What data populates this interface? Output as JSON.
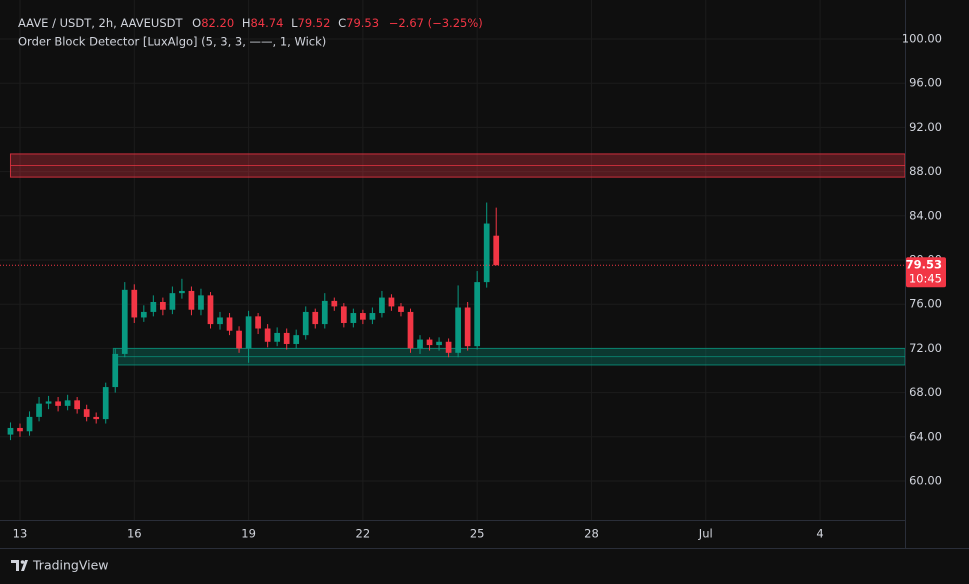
{
  "chart_data": {
    "type": "candlestick",
    "legend": {
      "symbol": "AAVE / USDT, 2h, AAVEUSDT",
      "o_label": "O",
      "open": "82.20",
      "h_label": "H",
      "high": "84.74",
      "l_label": "L",
      "low": "79.52",
      "c_label": "C",
      "close": "79.53",
      "change": "−2.67 (−3.25%)"
    },
    "indicator": "Order Block Detector [LuxAlgo] (5, 3, 3, ——, 1, Wick)",
    "up_color": "#089981",
    "down_color": "#f23645",
    "xlim": [
      -0.525,
      23.23
    ],
    "xticks": [
      {
        "value": 0,
        "label": "13"
      },
      {
        "value": 3,
        "label": "16"
      },
      {
        "value": 6,
        "label": "19"
      },
      {
        "value": 9,
        "label": "22"
      },
      {
        "value": 12,
        "label": "25"
      },
      {
        "value": 15,
        "label": "28"
      },
      {
        "value": 18,
        "label": "Jul"
      },
      {
        "value": 21,
        "label": "4"
      }
    ],
    "ylim": [
      56.47,
      103.53
    ],
    "yticks": [
      {
        "value": 60,
        "label": "60.00"
      },
      {
        "value": 64,
        "label": "64.00"
      },
      {
        "value": 68,
        "label": "68.00"
      },
      {
        "value": 72,
        "label": "72.00"
      },
      {
        "value": 76,
        "label": "76.00"
      },
      {
        "value": 80,
        "label": "80.00"
      },
      {
        "value": 84,
        "label": "84.00"
      },
      {
        "value": 88,
        "label": "88.00"
      },
      {
        "value": 92,
        "label": "92.00"
      },
      {
        "value": 96,
        "label": "96.00"
      },
      {
        "value": 100,
        "label": "100.00"
      }
    ],
    "grid": true,
    "x": [
      -0.25,
      0,
      0.25,
      0.5,
      0.75,
      1,
      1.25,
      1.5,
      1.75,
      2,
      2.25,
      2.5,
      2.75,
      3,
      3.25,
      3.5,
      3.75,
      4,
      4.25,
      4.5,
      4.75,
      5,
      5.25,
      5.5,
      5.75,
      6,
      6.25,
      6.5,
      6.75,
      7,
      7.25,
      7.5,
      7.75,
      8,
      8.25,
      8.5,
      8.75,
      9,
      9.25,
      9.5,
      9.75,
      10,
      10.25,
      10.5,
      10.75,
      11,
      11.25,
      11.5,
      11.75,
      12,
      12.25,
      12.5
    ],
    "open": [
      64.2,
      64.8,
      64.5,
      65.8,
      67,
      67.2,
      66.8,
      67.3,
      66.5,
      65.8,
      65.6,
      68.5,
      71.5,
      77.3,
      74.8,
      75.3,
      76.2,
      75.5,
      77,
      77.2,
      75.5,
      76.8,
      74.2,
      74.8,
      73.6,
      72,
      74.9,
      73.8,
      72.6,
      73.4,
      72.4,
      73.2,
      75.3,
      74.2,
      76.3,
      75.8,
      74.3,
      75.2,
      74.6,
      75.2,
      76.6,
      75.8,
      75.3,
      72,
      72.8,
      72.3,
      72.6,
      71.6,
      75.7,
      72.2,
      78,
      82.2
    ],
    "high": [
      65.3,
      65.2,
      66.3,
      67.6,
      67.7,
      67.6,
      67.8,
      67.6,
      66.9,
      66.2,
      68.9,
      72,
      78,
      77.8,
      75.9,
      76.8,
      76.6,
      77.6,
      78.3,
      77.6,
      77.4,
      77.1,
      75.3,
      75.2,
      74,
      75.4,
      75.2,
      74.2,
      73.9,
      73.8,
      73.7,
      75.8,
      75.6,
      77,
      76.6,
      76.1,
      75.6,
      75.5,
      75.7,
      77.2,
      76.9,
      76.1,
      75.6,
      73.2,
      73,
      73,
      72.9,
      77.7,
      76.2,
      79,
      85.2,
      84.74
    ],
    "low": [
      63.7,
      64,
      64.1,
      65.4,
      66.5,
      66.3,
      66.4,
      66.1,
      65.4,
      65.2,
      65.2,
      68,
      71.2,
      74.3,
      74.4,
      74.9,
      75,
      75.1,
      76.5,
      75,
      75,
      73.8,
      73.7,
      73.2,
      71.6,
      70.7,
      73.3,
      72.1,
      72.2,
      71.9,
      72,
      72.8,
      73.8,
      73.8,
      75.4,
      73.9,
      73.9,
      74.2,
      74.2,
      74.8,
      75.4,
      74.9,
      71.6,
      71.5,
      71.8,
      71.8,
      71.2,
      71.2,
      71.8,
      71.9,
      77.5,
      79.52
    ],
    "close": [
      64.8,
      64.5,
      65.8,
      67,
      67.2,
      66.8,
      67.3,
      66.5,
      65.8,
      65.6,
      68.5,
      71.5,
      77.3,
      74.8,
      75.3,
      76.2,
      75.5,
      77,
      77.2,
      75.5,
      76.8,
      74.2,
      74.8,
      73.6,
      72,
      74.9,
      73.8,
      72.6,
      73.4,
      72.4,
      73.2,
      75.3,
      74.2,
      76.3,
      75.8,
      74.3,
      75.2,
      74.6,
      75.2,
      76.6,
      75.8,
      75.3,
      72,
      72.8,
      72.3,
      72.6,
      71.6,
      75.7,
      72.2,
      78,
      83.3,
      79.53
    ],
    "order_blocks": [
      {
        "top": 89.6,
        "bottom": 87.5,
        "start": -0.25,
        "color": "#f23645"
      },
      {
        "top": 72,
        "bottom": 70.5,
        "start": 2.45,
        "color": "#089981"
      }
    ],
    "last_price": {
      "value": 79.53,
      "label": "79.53"
    },
    "countdown": "10:45",
    "brand": "TradingView"
  }
}
